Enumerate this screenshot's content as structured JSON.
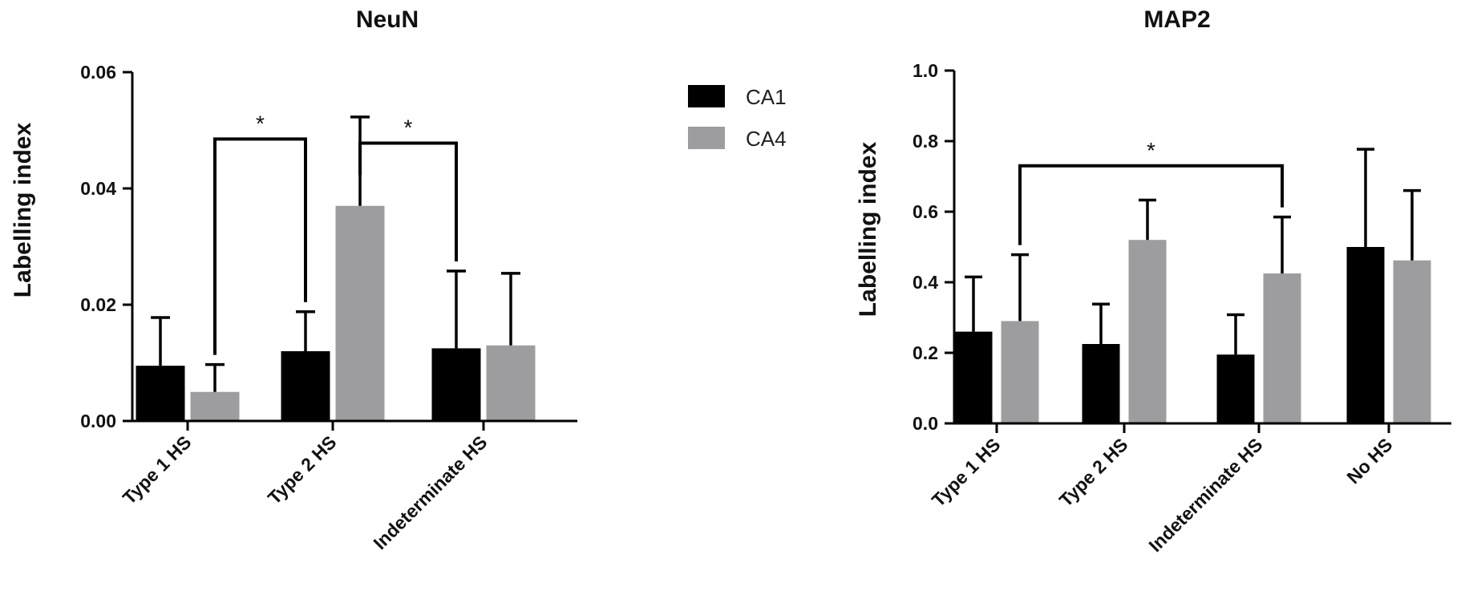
{
  "chart_data": [
    {
      "type": "bar",
      "title": "NeuN",
      "ylabel": "Labelling index",
      "xlabel": "",
      "ylim": [
        0,
        0.06
      ],
      "yticks": [
        "0.00",
        "0.02",
        "0.04",
        "0.06"
      ],
      "ytick_values": [
        0,
        0.02,
        0.04,
        0.06
      ],
      "categories": [
        "Type 1 HS",
        "Type 2 HS",
        "Indeterminate HS"
      ],
      "series": [
        {
          "name": "CA1",
          "color": "#000000",
          "values": [
            0.0095,
            0.012,
            0.0125
          ],
          "errors": [
            0.0083,
            0.0068,
            0.0133
          ]
        },
        {
          "name": "CA4",
          "color": "#9d9d9f",
          "values": [
            0.005,
            0.037,
            0.013
          ],
          "errors": [
            0.0047,
            0.0153,
            0.0124
          ]
        }
      ],
      "annotations": [
        {
          "text": "*",
          "from": {
            "category": 0,
            "series": 1
          },
          "to": {
            "category": 1,
            "series": 0
          },
          "level": 0.0485
        },
        {
          "text": "*",
          "from": {
            "category": 1,
            "series": 1
          },
          "to": {
            "category": 2,
            "series": 0
          },
          "level": 0.0478
        }
      ]
    },
    {
      "type": "bar",
      "title": "MAP2",
      "ylabel": "Labelling index",
      "xlabel": "",
      "ylim": [
        0,
        1.0
      ],
      "yticks": [
        "0.0",
        "0.2",
        "0.4",
        "0.6",
        "0.8",
        "1.0"
      ],
      "ytick_values": [
        0,
        0.2,
        0.4,
        0.6,
        0.8,
        1.0
      ],
      "categories": [
        "Type 1 HS",
        "Type 2 HS",
        "Indeterminate HS",
        "No HS"
      ],
      "series": [
        {
          "name": "CA1",
          "color": "#000000",
          "values": [
            0.26,
            0.225,
            0.195,
            0.5
          ],
          "errors": [
            0.155,
            0.113,
            0.113,
            0.277
          ]
        },
        {
          "name": "CA4",
          "color": "#9d9d9f",
          "values": [
            0.29,
            0.52,
            0.425,
            0.462
          ],
          "errors": [
            0.188,
            0.113,
            0.16,
            0.198
          ]
        }
      ],
      "annotations": [
        {
          "text": "*",
          "from": {
            "category": 0,
            "series": 1
          },
          "to": {
            "category": 2,
            "series": 1
          },
          "level": 0.73
        }
      ]
    }
  ],
  "legend": {
    "position": "right of NeuN chart",
    "entries": [
      {
        "name": "CA1",
        "color": "#000000"
      },
      {
        "name": "CA4",
        "color": "#9d9d9f"
      }
    ]
  }
}
